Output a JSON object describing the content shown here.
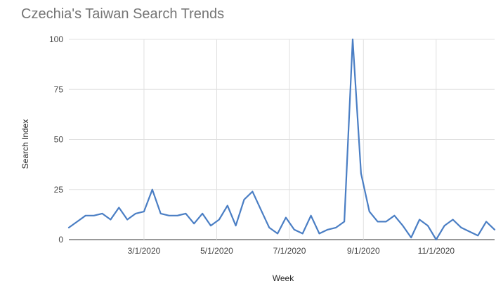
{
  "chart_data": {
    "type": "line",
    "title": "Czechia's Taiwan Search Trends",
    "xlabel": "Week",
    "ylabel": "Search Index",
    "ylim": [
      0,
      100
    ],
    "y_ticks": [
      0,
      25,
      50,
      75,
      100
    ],
    "x_ticks": [
      "2020-03-01",
      "2020-05-01",
      "2020-07-01",
      "2020-09-01",
      "2020-11-01"
    ],
    "x_tick_labels": [
      "3/1/2020",
      "5/1/2020",
      "7/1/2020",
      "9/1/2020",
      "11/1/2020"
    ],
    "grid": true,
    "line_color": "#4a7ec4",
    "grid_color": "#e0e0e0",
    "series": [
      {
        "x": [
          "2019-12-29",
          "2020-01-05",
          "2020-01-12",
          "2020-01-19",
          "2020-01-26",
          "2020-02-02",
          "2020-02-09",
          "2020-02-16",
          "2020-02-23",
          "2020-03-01",
          "2020-03-08",
          "2020-03-15",
          "2020-03-22",
          "2020-03-29",
          "2020-04-05",
          "2020-04-12",
          "2020-04-19",
          "2020-04-26",
          "2020-05-03",
          "2020-05-10",
          "2020-05-17",
          "2020-05-24",
          "2020-05-31",
          "2020-06-07",
          "2020-06-14",
          "2020-06-21",
          "2020-06-28",
          "2020-07-05",
          "2020-07-12",
          "2020-07-19",
          "2020-07-26",
          "2020-08-02",
          "2020-08-09",
          "2020-08-16",
          "2020-08-23",
          "2020-08-30",
          "2020-09-06",
          "2020-09-13",
          "2020-09-20",
          "2020-09-27",
          "2020-10-04",
          "2020-10-11",
          "2020-10-18",
          "2020-10-25",
          "2020-11-01",
          "2020-11-08",
          "2020-11-15",
          "2020-11-22",
          "2020-11-29",
          "2020-12-06",
          "2020-12-13",
          "2020-12-20"
        ],
        "values": [
          6,
          9,
          12,
          12,
          13,
          10,
          16,
          10,
          13,
          14,
          25,
          13,
          12,
          12,
          13,
          8,
          13,
          7,
          10,
          17,
          7,
          20,
          24,
          15,
          6,
          3,
          11,
          5,
          3,
          12,
          3,
          5,
          6,
          9,
          100,
          33,
          14,
          9,
          9,
          12,
          7,
          1,
          10,
          7,
          0,
          7,
          10,
          6,
          4,
          2,
          9,
          5
        ]
      }
    ]
  }
}
